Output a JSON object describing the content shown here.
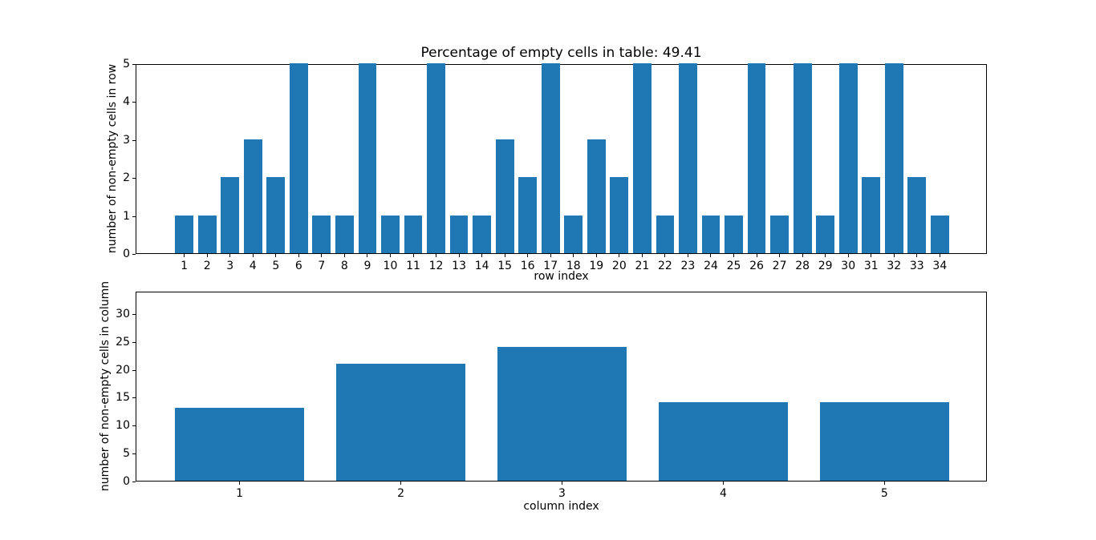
{
  "figure": {
    "background_color": "#ffffff",
    "axis_color": "#000000",
    "text_color": "#000000",
    "bar_color": "#1f77b4"
  },
  "chart_data": [
    {
      "type": "bar",
      "title": "Percentage of empty cells in table: 49.41",
      "xlabel": "row index",
      "ylabel": "number of non-empty cells in row",
      "categories": [
        1,
        2,
        3,
        4,
        5,
        6,
        7,
        8,
        9,
        10,
        11,
        12,
        13,
        14,
        15,
        16,
        17,
        18,
        19,
        20,
        21,
        22,
        23,
        24,
        25,
        26,
        27,
        28,
        29,
        30,
        31,
        32,
        33,
        34
      ],
      "values": [
        1,
        1,
        2,
        3,
        2,
        5,
        1,
        1,
        5,
        1,
        1,
        5,
        1,
        1,
        3,
        2,
        5,
        1,
        3,
        2,
        5,
        1,
        5,
        1,
        1,
        5,
        1,
        5,
        1,
        5,
        2,
        5,
        2,
        1
      ],
      "xlim": [
        -1.09,
        36.09
      ],
      "ylim": [
        0,
        5
      ],
      "yticks": [
        0,
        1,
        2,
        3,
        4,
        5
      ],
      "bar_width": 0.8,
      "color": "#1f77b4",
      "grid": false,
      "legend": "none"
    },
    {
      "type": "bar",
      "title": "",
      "xlabel": "column index",
      "ylabel": "number of non-empty cells in column",
      "categories": [
        1,
        2,
        3,
        4,
        5
      ],
      "values": [
        13,
        21,
        24,
        14,
        14
      ],
      "xlim": [
        0.36,
        5.64
      ],
      "ylim": [
        0,
        34
      ],
      "yticks": [
        0,
        5,
        10,
        15,
        20,
        25,
        30
      ],
      "bar_width": 0.8,
      "color": "#1f77b4",
      "grid": false,
      "legend": "none"
    }
  ]
}
